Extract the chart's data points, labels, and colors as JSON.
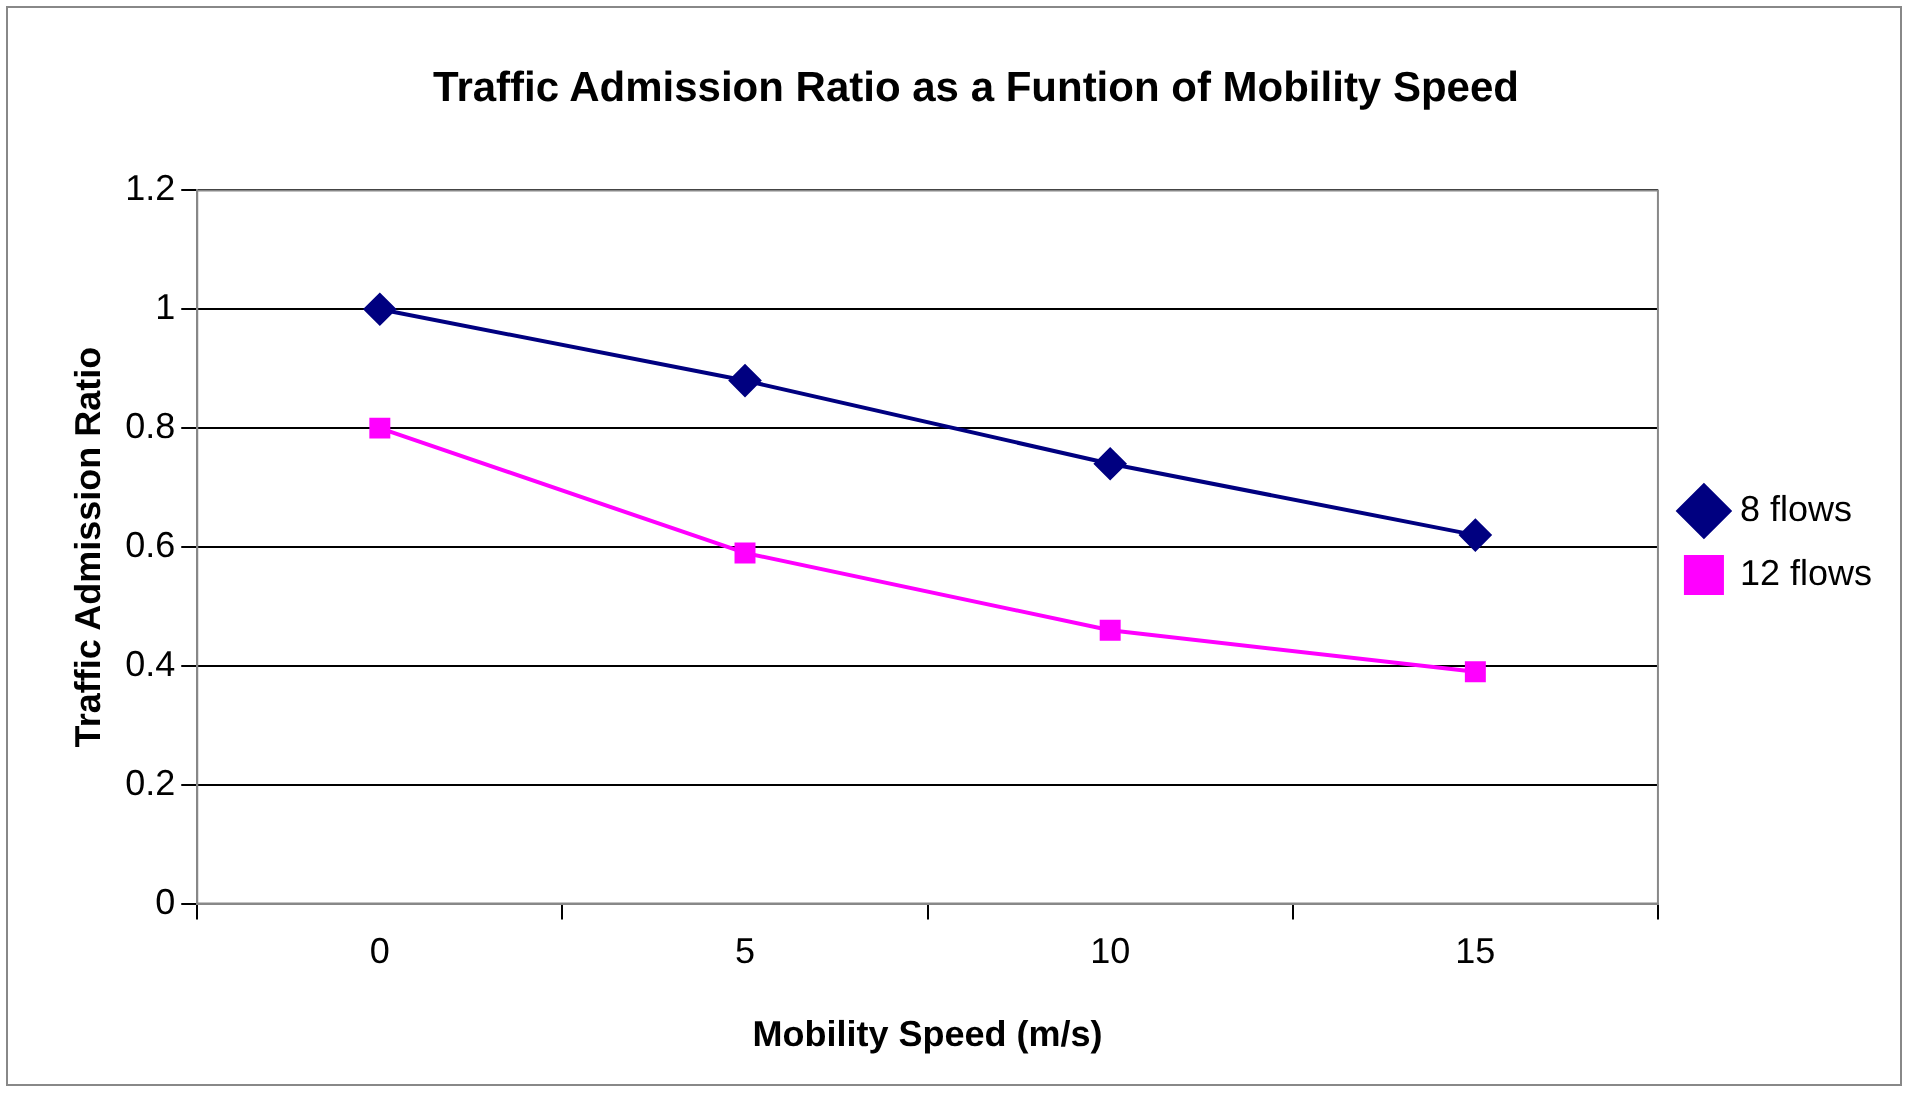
{
  "chart_data": {
    "type": "line",
    "title": "Traffic Admission Ratio as a Funtion of Mobility Speed",
    "xlabel": "Mobility Speed (m/s)",
    "ylabel": "Traffic Admission Ratio",
    "categories": [
      "0",
      "5",
      "10",
      "15"
    ],
    "series": [
      {
        "name": "8 flows",
        "color": "#000080",
        "marker": "diamond",
        "values": [
          1.0,
          0.88,
          0.74,
          0.62
        ]
      },
      {
        "name": "12 flows",
        "color": "#ff00ff",
        "marker": "square",
        "values": [
          0.8,
          0.59,
          0.46,
          0.39
        ]
      }
    ],
    "ylim": [
      0,
      1.2
    ],
    "yticks": [
      0,
      0.2,
      0.4,
      0.6,
      0.8,
      1,
      1.2
    ],
    "grid": "y",
    "legend": "right",
    "line_style": "solid"
  }
}
